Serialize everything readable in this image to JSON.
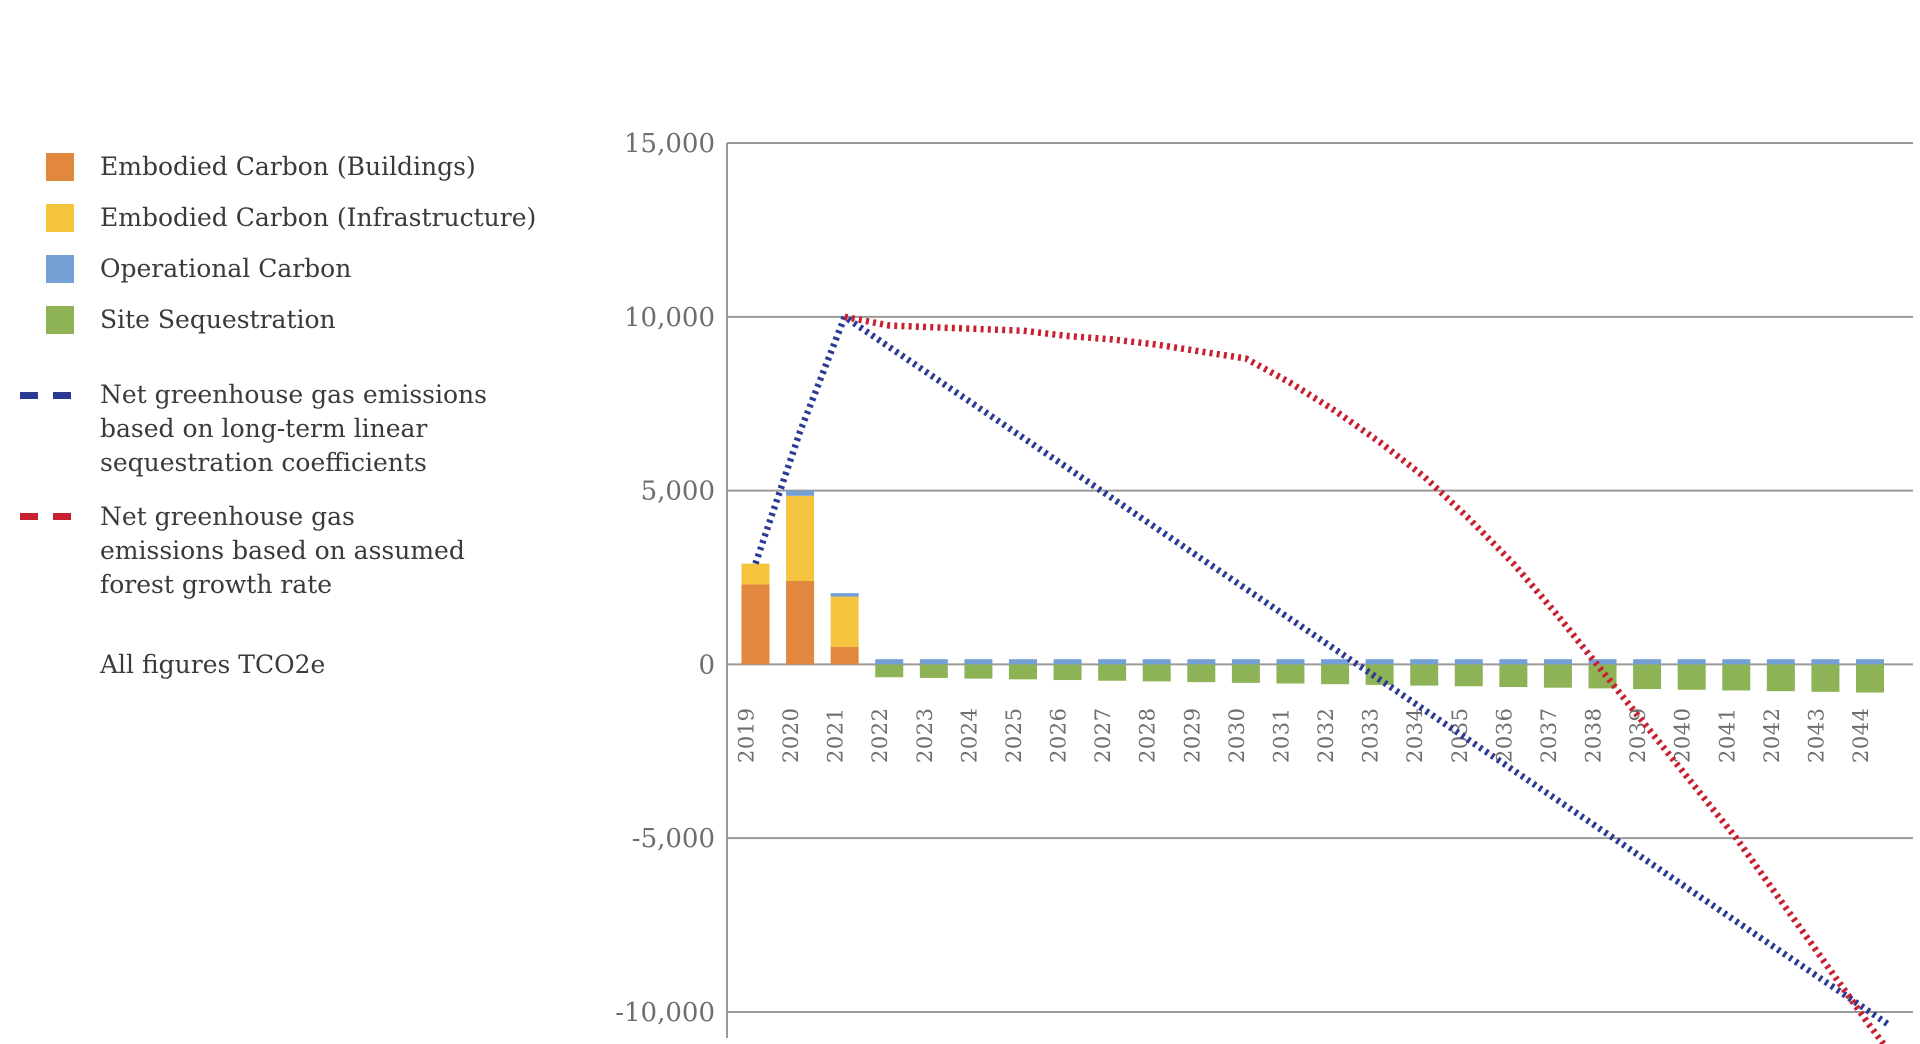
{
  "legend": {
    "items": [
      {
        "label": "Embodied Carbon (Buildings)",
        "color": "#E2873E"
      },
      {
        "label": "Embodied Carbon (Infrastructure)",
        "color": "#F4C43F"
      },
      {
        "label": "Operational Carbon",
        "color": "#74A0D6"
      },
      {
        "label": "Site Sequestration",
        "color": "#8DB356"
      }
    ],
    "line_items": [
      {
        "label": "Net greenhouse gas emissions\nbased on long-term linear\nsequestration coefficients",
        "color": "#2B3A94"
      },
      {
        "label": "Net greenhouse gas\nemissions based on assumed\nforest growth rate",
        "color": "#C8202F"
      }
    ],
    "note": "All figures TCO2e"
  },
  "chart_data": {
    "type": "bar",
    "subtype": "stacked-bars-with-dotted-trend-lines",
    "unit": "TCO2e",
    "grid": true,
    "legend_position": "left",
    "categories": [
      2019,
      2020,
      2021,
      2022,
      2023,
      2024,
      2025,
      2026,
      2027,
      2028,
      2029,
      2030,
      2031,
      2032,
      2033,
      2034,
      2035,
      2036,
      2037,
      2038,
      2039,
      2040,
      2041,
      2042,
      2043,
      2044
    ],
    "series": [
      {
        "name": "Embodied Carbon (Buildings)",
        "key": "buildings",
        "color": "#E2873E",
        "values": [
          2300,
          2400,
          500,
          0,
          0,
          0,
          0,
          0,
          0,
          0,
          0,
          0,
          0,
          0,
          0,
          0,
          0,
          0,
          0,
          0,
          0,
          0,
          0,
          0,
          0,
          0
        ]
      },
      {
        "name": "Embodied Carbon (Infrastructure)",
        "key": "infrastructure",
        "color": "#F4C43F",
        "values": [
          600,
          2450,
          1450,
          0,
          0,
          0,
          0,
          0,
          0,
          0,
          0,
          0,
          0,
          0,
          0,
          0,
          0,
          0,
          0,
          0,
          0,
          0,
          0,
          0,
          0,
          0
        ]
      },
      {
        "name": "Operational Carbon",
        "key": "operational",
        "color": "#74A0D6",
        "values": [
          0,
          150,
          100,
          150,
          150,
          150,
          150,
          150,
          150,
          150,
          150,
          150,
          150,
          150,
          150,
          150,
          150,
          150,
          150,
          150,
          150,
          150,
          150,
          150,
          150,
          150
        ]
      },
      {
        "name": "Site Sequestration",
        "key": "sequestration",
        "color": "#8DB356",
        "values": [
          0,
          0,
          0,
          -370,
          -390,
          -410,
          -430,
          -450,
          -470,
          -490,
          -510,
          -530,
          -550,
          -570,
          -590,
          -610,
          -630,
          -650,
          -670,
          -690,
          -710,
          -730,
          -750,
          -770,
          -790,
          -810
        ]
      }
    ],
    "lines": [
      {
        "name": "Net greenhouse gas emissions based on long-term linear sequestration coefficients",
        "color": "#2B3A94",
        "points": [
          [
            2019,
            2900
          ],
          [
            2020,
            6700
          ],
          [
            2021,
            10000
          ],
          [
            2044.4,
            -10350
          ]
        ]
      },
      {
        "name": "Net greenhouse gas emissions based on assumed forest growth rate",
        "color": "#C8202F",
        "points": [
          [
            2021,
            10000
          ],
          [
            2022,
            9750
          ],
          [
            2023,
            9700
          ],
          [
            2024,
            9650
          ],
          [
            2025,
            9600
          ],
          [
            2026,
            9450
          ],
          [
            2027,
            9350
          ],
          [
            2028,
            9200
          ],
          [
            2029,
            9000
          ],
          [
            2030,
            8800
          ],
          [
            2031,
            8100
          ],
          [
            2032,
            7300
          ],
          [
            2033,
            6400
          ],
          [
            2034,
            5400
          ],
          [
            2035,
            4200
          ],
          [
            2036,
            2900
          ],
          [
            2037,
            1400
          ],
          [
            2038,
            -200
          ],
          [
            2039,
            -1800
          ],
          [
            2040,
            -3400
          ],
          [
            2041,
            -5000
          ],
          [
            2042,
            -6800
          ],
          [
            2043,
            -8600
          ],
          [
            2044,
            -10400
          ],
          [
            2044.35,
            -11000
          ]
        ]
      }
    ],
    "y_axis": {
      "min": -10000,
      "max": 15000,
      "ticks": [
        {
          "value": 15000,
          "label": "15,000"
        },
        {
          "value": 10000,
          "label": "10,000"
        },
        {
          "value": 5000,
          "label": "5,000"
        },
        {
          "value": 0,
          "label": "0"
        },
        {
          "value": -5000,
          "label": "-5,000"
        },
        {
          "value": -10000,
          "label": "-10,000"
        }
      ]
    }
  }
}
